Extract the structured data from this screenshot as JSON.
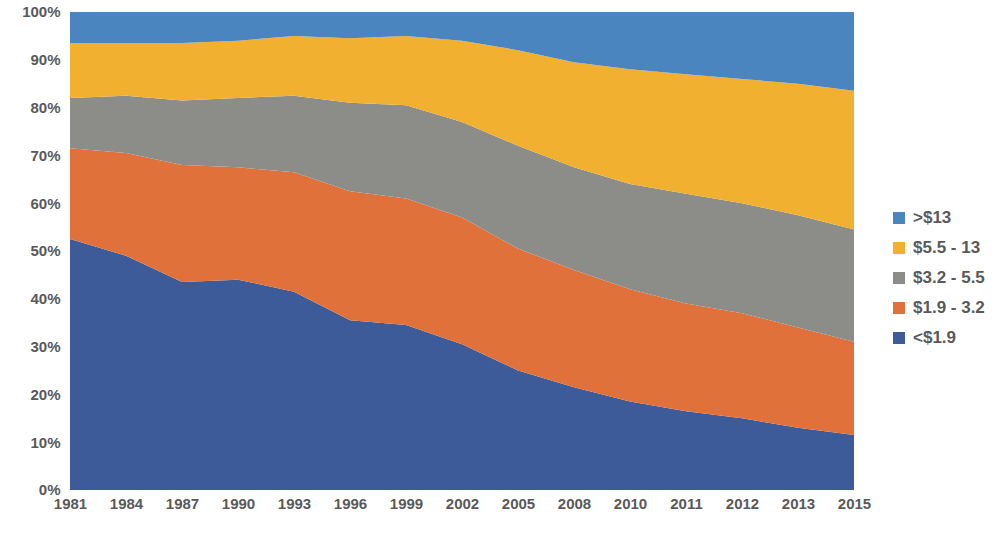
{
  "chart_data": {
    "type": "area",
    "stacked": true,
    "grid": false,
    "legend": "right",
    "categories": [
      "1981",
      "1984",
      "1987",
      "1990",
      "1993",
      "1996",
      "1999",
      "2002",
      "2005",
      "2008",
      "2010",
      "2011",
      "2012",
      "2013",
      "2015"
    ],
    "ylim": [
      0,
      100
    ],
    "yticks": [
      {
        "value": 0,
        "label": "0%"
      },
      {
        "value": 10,
        "label": "10%"
      },
      {
        "value": 20,
        "label": "20%"
      },
      {
        "value": 30,
        "label": "30%"
      },
      {
        "value": 40,
        "label": "40%"
      },
      {
        "value": 50,
        "label": "50%"
      },
      {
        "value": 60,
        "label": "60%"
      },
      {
        "value": 70,
        "label": "70%"
      },
      {
        "value": 80,
        "label": "80%"
      },
      {
        "value": 90,
        "label": "90%"
      },
      {
        "value": 100,
        "label": "100%"
      }
    ],
    "series": [
      {
        "name": "<$1.9",
        "color": "#3d5a99",
        "values": [
          52.5,
          49,
          43.5,
          44,
          41.5,
          35.5,
          34.5,
          30.5,
          25,
          21.5,
          18.5,
          16.5,
          15,
          13,
          11.5
        ]
      },
      {
        "name": "$1.9 - 3.2",
        "color": "#e0713a",
        "values": [
          19,
          21.5,
          24.5,
          23.5,
          25,
          27,
          26.5,
          26.5,
          25.5,
          24.5,
          23.5,
          22.5,
          22,
          21,
          19.5
        ]
      },
      {
        "name": "$3.2 - 5.5",
        "color": "#8c8c89",
        "values": [
          10.5,
          12,
          13.5,
          14.5,
          16,
          18.5,
          19.5,
          20,
          21.5,
          21.5,
          22,
          23,
          23,
          23.5,
          23.5
        ]
      },
      {
        "name": "$5.5 - 13",
        "color": "#f2b031",
        "values": [
          11.5,
          11,
          12,
          12,
          12.5,
          13.5,
          14.5,
          17,
          20,
          22,
          24,
          25,
          26,
          27.5,
          29
        ]
      },
      {
        "name": ">$13",
        "color": "#4b85bf",
        "values": [
          6.5,
          6.5,
          6.5,
          6,
          5,
          5.5,
          5,
          6,
          8,
          10.5,
          12,
          13,
          14,
          15,
          16.5
        ]
      }
    ]
  }
}
